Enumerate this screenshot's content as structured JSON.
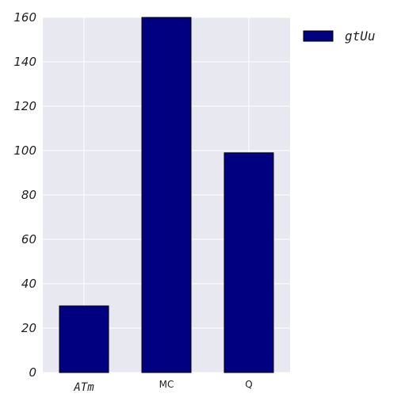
{
  "colors": {
    "plot_background": "#e8e8f0",
    "grid": "#ffffff",
    "bar_fill": "#000080",
    "bar_stroke": "#000000"
  },
  "chart_data": {
    "type": "bar",
    "categories": [
      "ATm",
      "MC",
      "Q"
    ],
    "category_styles": [
      "italic-mono",
      "plain",
      "plain"
    ],
    "series": [
      {
        "name": "gtUu",
        "values": [
          30,
          160,
          99
        ]
      }
    ],
    "title": "",
    "xlabel": "",
    "ylabel": "",
    "ylim": [
      0,
      160
    ],
    "yticks": [
      0,
      20,
      40,
      60,
      80,
      100,
      120,
      140,
      160
    ],
    "grid": true,
    "legend_position": "right-outside-top"
  }
}
